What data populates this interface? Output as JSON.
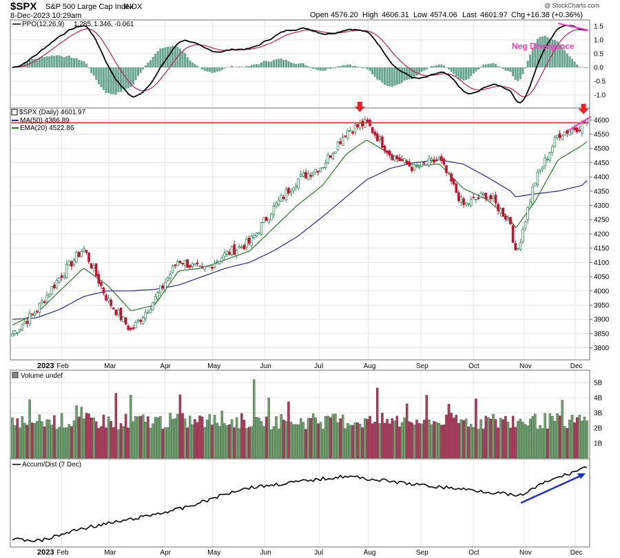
{
  "header": {
    "ticker": "$SPX",
    "name": "S&P 500 Large Cap Index",
    "exchange": "INDX",
    "timestamp": "8-Dec-2023 10:29am",
    "watermark": "@ StockCharts.com",
    "open_label": "Open",
    "open": "4576.20",
    "high_label": "High",
    "high": "4606.31",
    "low_label": "Low",
    "low": "4574.06",
    "last_label": "Last",
    "last": "4601.97",
    "chg_label": "Chg",
    "chg": "+16.38 (+0.36%)"
  },
  "colors": {
    "up": "#2e8b57",
    "down": "#c8102e",
    "ma50": "#1f2a8a",
    "ema20": "#1f7a1f",
    "ppo_signal": "#c2185b",
    "ppo_hist": "#3f8f74",
    "resistance": "#d32f2f",
    "divergence": "#ff33cc",
    "accum_trend": "#1c2fd6",
    "arrow": "#ee2222"
  },
  "ppo_panel": {
    "legend_symbol": "PPO(12,26,9)",
    "legend_ppo": "1.285,",
    "legend_signal": "1.346,",
    "legend_hist": "-0.061",
    "annotation": "Neg Divergence",
    "y_ticks": [
      "1.5",
      "1.0",
      "0.5",
      "0.0",
      "-0.5",
      "-1.0"
    ]
  },
  "price_panel": {
    "legend_price": "$SPX (Daily) 4601.97",
    "legend_ma": "MA(50) 4386.89",
    "legend_ema": "EMA(20) 4522.86",
    "y_ticks": [
      "4600",
      "4550",
      "4500",
      "4450",
      "4400",
      "4350",
      "4300",
      "4250",
      "4200",
      "4150",
      "4100",
      "4050",
      "4000",
      "3950",
      "3900",
      "3850",
      "3800"
    ]
  },
  "volume_panel": {
    "legend": "Volume undef",
    "y_ticks": [
      "5B",
      "4B",
      "3B",
      "2B",
      "1B"
    ]
  },
  "accum_panel": {
    "legend": "Accum/Dist (7 Dec)"
  },
  "x_axis": {
    "year": "2023",
    "months": [
      "Feb",
      "Mar",
      "Apr",
      "May",
      "Jun",
      "Jul",
      "Aug",
      "Sep",
      "Oct",
      "Nov",
      "Dec"
    ]
  },
  "chart_data": {
    "type": "line",
    "x": [
      "2023-01-03",
      "2023-01-17",
      "2023-01-31",
      "2023-02-14",
      "2023-02-28",
      "2023-03-14",
      "2023-03-28",
      "2023-04-11",
      "2023-04-25",
      "2023-05-09",
      "2023-05-23",
      "2023-06-06",
      "2023-06-20",
      "2023-07-05",
      "2023-07-19",
      "2023-07-31",
      "2023-08-14",
      "2023-08-28",
      "2023-09-12",
      "2023-09-26",
      "2023-10-10",
      "2023-10-24",
      "2023-10-27",
      "2023-11-07",
      "2023-11-21",
      "2023-12-05",
      "2023-12-08"
    ],
    "ylim": [
      3770,
      4620
    ],
    "series": [
      {
        "name": "$SPX (Daily)",
        "values": [
          3850,
          3930,
          4050,
          4150,
          3970,
          3860,
          3970,
          4110,
          4070,
          4130,
          4170,
          4290,
          4390,
          4440,
          4560,
          4590,
          4480,
          4430,
          4460,
          4300,
          4340,
          4240,
          4120,
          4380,
          4550,
          4580,
          4602
        ]
      },
      {
        "name": "MA(50)",
        "values": [
          3900,
          3905,
          3935,
          3980,
          4000,
          4000,
          4005,
          4020,
          4050,
          4080,
          4100,
          4140,
          4190,
          4260,
          4330,
          4390,
          4430,
          4450,
          4460,
          4445,
          4400,
          4350,
          4330,
          4340,
          4350,
          4370,
          4387
        ]
      },
      {
        "name": "EMA(20)",
        "values": [
          3880,
          3920,
          4000,
          4080,
          4020,
          3930,
          3950,
          4070,
          4080,
          4110,
          4140,
          4220,
          4300,
          4370,
          4480,
          4530,
          4480,
          4440,
          4445,
          4360,
          4320,
          4250,
          4220,
          4310,
          4460,
          4510,
          4523
        ]
      }
    ],
    "annotations": [
      "Neg Divergence"
    ]
  }
}
